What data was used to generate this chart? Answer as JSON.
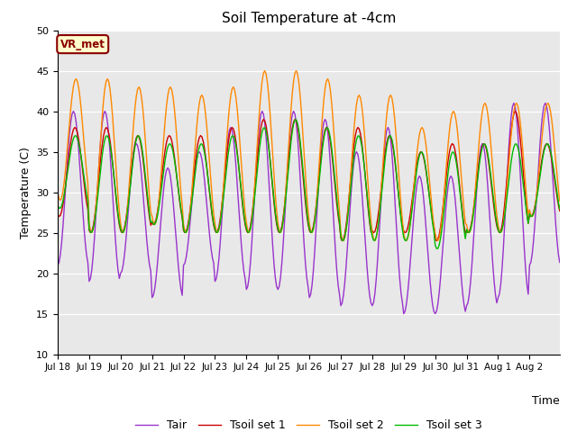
{
  "title": "Soil Temperature at -4cm",
  "xlabel": "Time",
  "ylabel": "Temperature (C)",
  "ylim": [
    10,
    50
  ],
  "background_color": "#e8e8e8",
  "annotation_text": "VR_met",
  "annotation_color": "#8B0000",
  "colors": {
    "Tair": "#9933CC",
    "Tsoil set 1": "#CC0000",
    "Tsoil set 2": "#FF8800",
    "Tsoil set 3": "#00BB00"
  },
  "legend_labels": [
    "Tair",
    "Tsoil set 1",
    "Tsoil set 2",
    "Tsoil set 3"
  ],
  "num_days": 16,
  "hours_per_day": 24,
  "tair_params": {
    "base_min": [
      21,
      19,
      20,
      17,
      21,
      19,
      18,
      18,
      17,
      16,
      16,
      15,
      15,
      16,
      17,
      21
    ],
    "base_max": [
      40,
      40,
      36,
      33,
      35,
      38,
      40,
      40,
      39,
      35,
      38,
      32,
      32,
      36,
      41,
      41
    ]
  },
  "tsoil1_params": {
    "base_min": [
      27,
      25,
      25,
      26,
      25,
      25,
      25,
      25,
      25,
      24,
      25,
      25,
      24,
      25,
      25,
      27
    ],
    "base_max": [
      38,
      38,
      37,
      37,
      37,
      38,
      39,
      39,
      38,
      38,
      37,
      35,
      36,
      36,
      40,
      36
    ]
  },
  "tsoil2_params": {
    "base_min": [
      29,
      25,
      25,
      26,
      25,
      25,
      25,
      25,
      25,
      24,
      24,
      24,
      24,
      25,
      25,
      27
    ],
    "base_max": [
      44,
      44,
      43,
      43,
      42,
      43,
      45,
      45,
      44,
      42,
      42,
      38,
      40,
      41,
      41,
      41
    ]
  },
  "tsoil3_params": {
    "base_min": [
      28,
      25,
      25,
      26,
      25,
      25,
      25,
      25,
      25,
      24,
      24,
      24,
      23,
      25,
      25,
      27
    ],
    "base_max": [
      37,
      37,
      37,
      36,
      36,
      37,
      38,
      39,
      38,
      37,
      37,
      35,
      35,
      36,
      36,
      36
    ]
  },
  "xtick_labels": [
    "Jul 18",
    "Jul 19",
    "Jul 20",
    "Jul 21",
    "Jul 22",
    "Jul 23",
    "Jul 24",
    "Jul 25",
    "Jul 26",
    "Jul 27",
    "Jul 28",
    "Jul 29",
    "Jul 30",
    "Jul 31",
    "Aug 1",
    "Aug 2"
  ],
  "ytick_labels": [
    10,
    15,
    20,
    25,
    30,
    35,
    40,
    45,
    50
  ]
}
